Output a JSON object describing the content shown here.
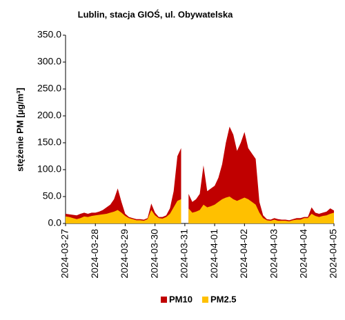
{
  "chart_data": {
    "type": "area",
    "title": "Lublin, stacja GIOŚ, ul. Obywatelska",
    "y_label": "stężenie PM [µg/m³]",
    "xlim": [
      "2024-03-27",
      "2024-04-05"
    ],
    "xticks": [
      "2024-03-27",
      "2024-03-28",
      "2024-03-29",
      "2024-03-30",
      "2024-03-31",
      "2024-04-01",
      "2024-04-02",
      "2024-04-03",
      "2024-04-04",
      "2024-04-05"
    ],
    "ylim": [
      0,
      350
    ],
    "yticks": [
      {
        "value": 0,
        "label": "0.0"
      },
      {
        "value": 50,
        "label": "50.0"
      },
      {
        "value": 100,
        "label": "100.0"
      },
      {
        "value": 150,
        "label": "150.0"
      },
      {
        "value": 200,
        "label": "200.0"
      },
      {
        "value": 250,
        "label": "250.0"
      },
      {
        "value": 300,
        "label": "300.0"
      },
      {
        "value": 350,
        "label": "350.0"
      }
    ],
    "legend": "bottom",
    "series": [
      {
        "name": "PM10",
        "color": "#c00000",
        "values": [
          18,
          17,
          16,
          15,
          18,
          20,
          18,
          20,
          20,
          22,
          25,
          30,
          35,
          45,
          65,
          40,
          18,
          12,
          10,
          8,
          8,
          7,
          10,
          37,
          20,
          12,
          12,
          15,
          28,
          60,
          125,
          140,
          null,
          55,
          40,
          45,
          55,
          108,
          60,
          65,
          70,
          85,
          110,
          150,
          180,
          165,
          135,
          150,
          170,
          140,
          130,
          120,
          40,
          15,
          8,
          7,
          10,
          8,
          7,
          7,
          6,
          8,
          10,
          10,
          12,
          12,
          30,
          20,
          18,
          20,
          22,
          28,
          24
        ]
      },
      {
        "name": "PM2.5",
        "color": "#ffc000",
        "values": [
          13,
          12,
          10,
          8,
          10,
          13,
          12,
          14,
          15,
          16,
          17,
          18,
          20,
          22,
          25,
          20,
          14,
          10,
          8,
          6,
          6,
          5,
          8,
          25,
          15,
          10,
          9,
          12,
          18,
          30,
          42,
          45,
          null,
          28,
          20,
          22,
          25,
          35,
          30,
          32,
          35,
          40,
          45,
          48,
          50,
          45,
          42,
          45,
          48,
          45,
          40,
          35,
          20,
          10,
          6,
          5,
          7,
          5,
          5,
          5,
          4,
          6,
          7,
          7,
          10,
          10,
          18,
          14,
          12,
          14,
          15,
          18,
          20
        ]
      }
    ]
  }
}
